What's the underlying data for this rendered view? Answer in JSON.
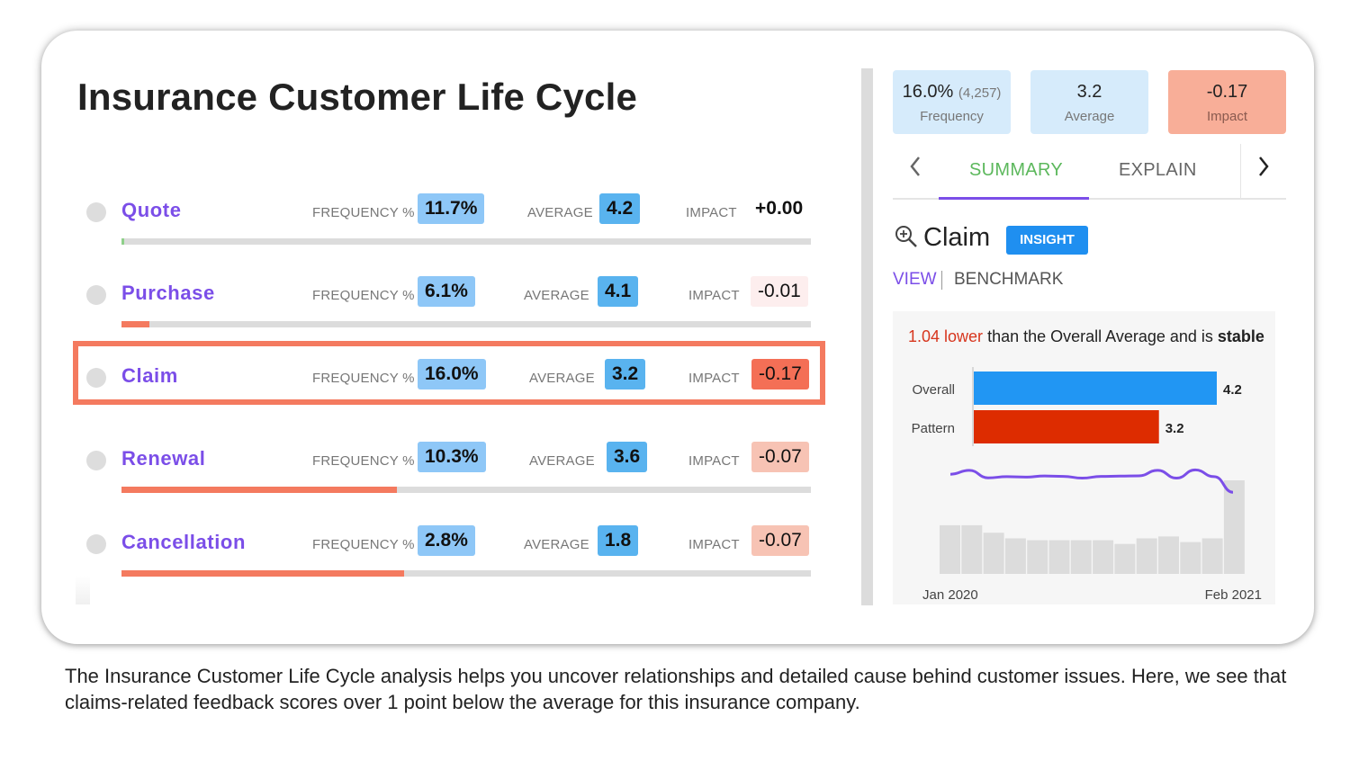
{
  "title": "Insurance Customer Life Cycle",
  "labels": {
    "frequency": "FREQUENCY %",
    "average": "AVERAGE",
    "impact": "IMPACT"
  },
  "stages": [
    {
      "name": "Quote",
      "frequency": "11.7%",
      "average": "4.2",
      "impact": "+0.00",
      "impact_style": "neutral",
      "bar_fill": 0.003,
      "bar_color": "#8fd08a"
    },
    {
      "name": "Purchase",
      "frequency": "6.1%",
      "average": "4.1",
      "impact": "-0.01",
      "impact_style": "light",
      "bar_fill": 0.04,
      "bar_color": "#f47a5f"
    },
    {
      "name": "Claim",
      "frequency": "16.0%",
      "average": "3.2",
      "impact": "-0.17",
      "impact_style": "strong",
      "bar_fill": 0,
      "bar_color": "#f47a5f",
      "highlighted": true
    },
    {
      "name": "Renewal",
      "frequency": "10.3%",
      "average": "3.6",
      "impact": "-0.07",
      "impact_style": "mid",
      "bar_fill": 0.4,
      "bar_color": "#f47a5f"
    },
    {
      "name": "Cancellation",
      "frequency": "2.8%",
      "average": "1.8",
      "impact": "-0.07",
      "impact_style": "mid",
      "bar_fill": 0.41,
      "bar_color": "#f47a5f"
    }
  ],
  "metrics": {
    "frequency": {
      "value": "16.0%",
      "sub": "(4,257)",
      "label": "Frequency"
    },
    "average": {
      "value": "3.2",
      "label": "Average"
    },
    "impact": {
      "value": "-0.17",
      "label": "Impact"
    }
  },
  "tabs": {
    "summary": "SUMMARY",
    "explain": "EXPLAIN",
    "prev_icon": "chevron-left-icon",
    "next_icon": "chevron-right-icon"
  },
  "insight": {
    "title": "Claim",
    "badge": "INSIGHT",
    "view": "VIEW",
    "benchmark": "BENCHMARK",
    "text_red": "1.04 lower",
    "text_mid": " than the Overall Average and is ",
    "text_bold": "stable"
  },
  "caption": "The Insurance Customer Life Cycle analysis helps you uncover relationships and detailed cause behind customer issues. Here, we see that claims-related feedback scores over 1 point below the average for this insurance company.",
  "colors": {
    "accent": "#7b4ee8",
    "overall_bar": "#2196f3",
    "pattern_bar": "#dd2c00",
    "trend_line": "#7b4ee8",
    "highlight": "#f47a5f"
  },
  "chart_data": {
    "type": "bar",
    "bars": {
      "categories": [
        "Overall",
        "Pattern"
      ],
      "values": [
        4.2,
        3.2
      ],
      "xlim": [
        0,
        4.2
      ]
    },
    "trend": {
      "type": "line+bar",
      "x_start_label": "Jan 2020",
      "x_end_label": "Feb 2021",
      "volume": [
        0.52,
        0.52,
        0.44,
        0.38,
        0.36,
        0.36,
        0.36,
        0.36,
        0.32,
        0.38,
        0.4,
        0.34,
        0.38,
        1.0
      ],
      "line": [
        0.55,
        0.82,
        0.3,
        0.38,
        0.35,
        0.43,
        0.4,
        0.28,
        0.4,
        0.42,
        0.44,
        0.82,
        0.28,
        0.85,
        0.38,
        -0.7
      ],
      "note": "volume and line are relative levels (0-1), no printed axis values"
    }
  }
}
